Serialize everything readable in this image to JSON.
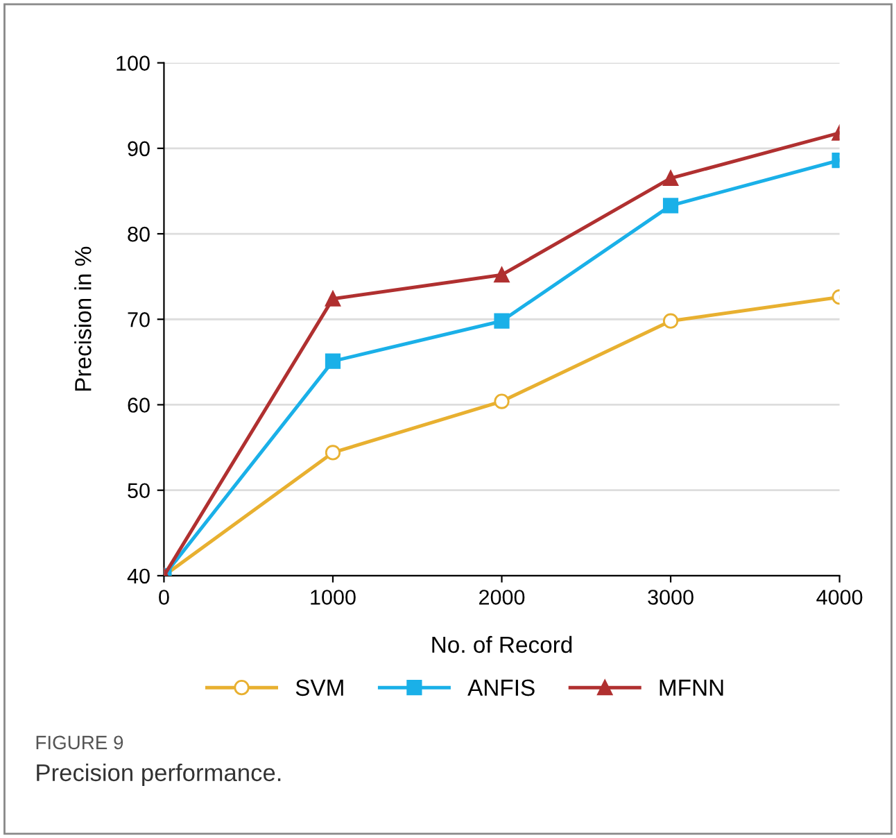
{
  "chart_data": {
    "type": "line",
    "xlabel": "No. of Record",
    "ylabel": "Precision in %",
    "x": [
      0,
      1000,
      2000,
      3000,
      4000
    ],
    "xlim": [
      0,
      4000
    ],
    "xticks": [
      0,
      1000,
      2000,
      3000,
      4000
    ],
    "ylim": [
      40,
      100
    ],
    "yticks": [
      40,
      50,
      60,
      70,
      80,
      90,
      100
    ],
    "grid": "y",
    "legend": "bottom",
    "line_style": "solid",
    "series": [
      {
        "name": "SVM",
        "color": "#e8b030",
        "marker": "circle",
        "values": [
          40,
          54.4,
          60.4,
          69.8,
          72.6
        ]
      },
      {
        "name": "ANFIS",
        "color": "#1ab0e8",
        "marker": "square",
        "values": [
          40,
          65.1,
          69.8,
          83.3,
          88.6
        ]
      },
      {
        "name": "MFNN",
        "color": "#b03030",
        "marker": "triangle",
        "values": [
          40,
          72.4,
          75.2,
          86.5,
          91.8
        ]
      }
    ],
    "annotations": [
      "FIGURE 9",
      "Precision performance."
    ]
  }
}
